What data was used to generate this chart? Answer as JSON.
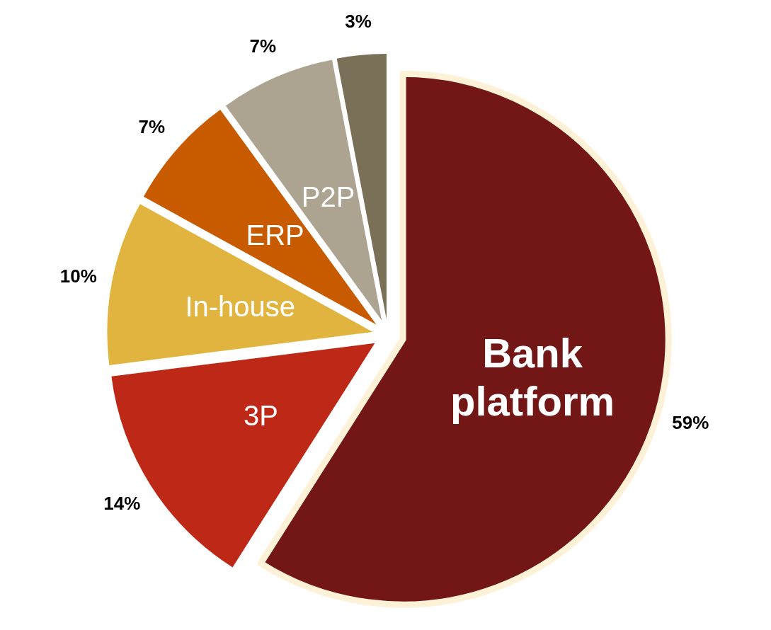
{
  "chart_data": {
    "type": "pie",
    "categories": [
      "Bank platform",
      "3P",
      "In-house",
      "ERP",
      "P2P",
      null
    ],
    "values": [
      59,
      14,
      10,
      7,
      7,
      3
    ],
    "colors": [
      "#721716",
      "#be2817",
      "#e0b43e",
      "#c85a00",
      "#aca491",
      "#7a7057"
    ],
    "value_labels": [
      "59%",
      "14%",
      "10%",
      "7%",
      "7%",
      "3%"
    ]
  }
}
